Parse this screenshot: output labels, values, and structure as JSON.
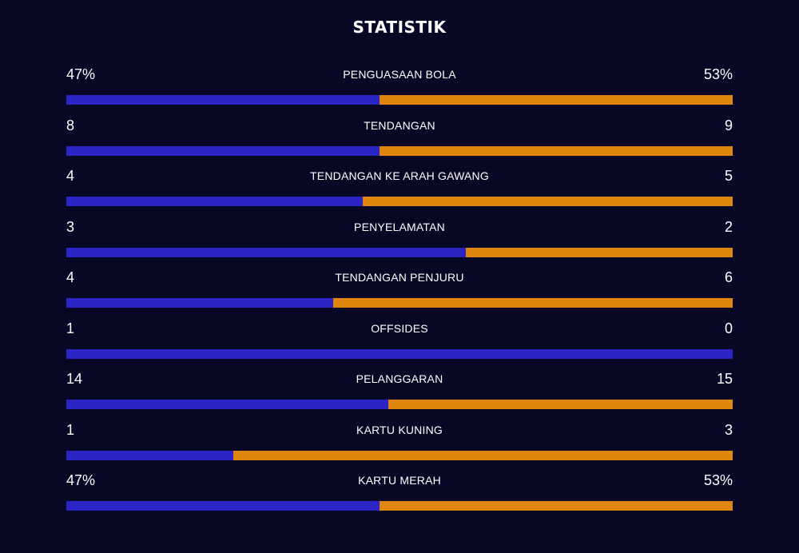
{
  "title": "STATISTIK",
  "colors": {
    "background": "#080826",
    "home": "#2a25c4",
    "away": "#e0860f",
    "text": "#ffffff"
  },
  "stats": [
    {
      "label": "PENGUASAAN BOLA",
      "left": "47%",
      "right": "53%",
      "left_share": 0.47
    },
    {
      "label": "TENDANGAN",
      "left": "8",
      "right": "9",
      "left_share": 0.4706
    },
    {
      "label": "TENDANGAN KE ARAH GAWANG",
      "left": "4",
      "right": "5",
      "left_share": 0.4444
    },
    {
      "label": "PENYELAMATAN",
      "left": "3",
      "right": "2",
      "left_share": 0.6
    },
    {
      "label": "TENDANGAN PENJURU",
      "left": "4",
      "right": "6",
      "left_share": 0.4
    },
    {
      "label": "OFFSIDES",
      "left": "1",
      "right": "0",
      "left_share": 1.0
    },
    {
      "label": "PELANGGARAN",
      "left": "14",
      "right": "15",
      "left_share": 0.4828
    },
    {
      "label": "KARTU KUNING",
      "left": "1",
      "right": "3",
      "left_share": 0.25
    },
    {
      "label": "KARTU MERAH",
      "left": "47%",
      "right": "53%",
      "left_share": 0.47
    }
  ]
}
